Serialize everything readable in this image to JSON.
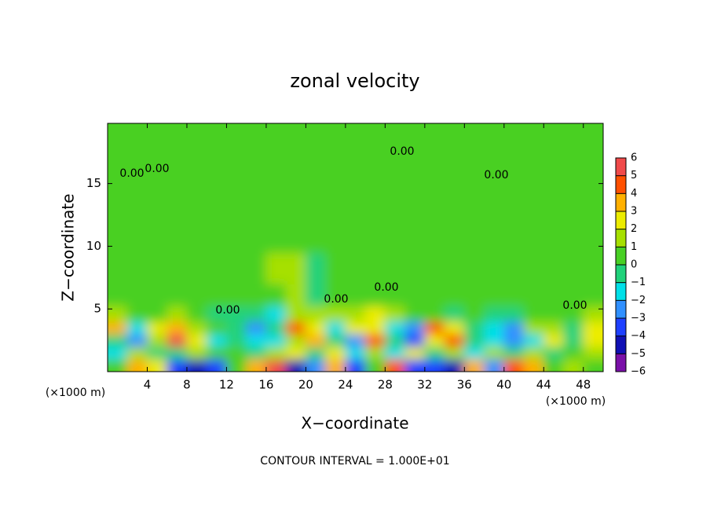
{
  "chart_data": {
    "type": "heatmap",
    "title": "zonal velocity",
    "xlabel": "X−coordinate",
    "ylabel": "Z−coordinate",
    "x_unit_label": "(×1000 m)",
    "y_unit_label": "(×1000 m)",
    "footnote": "CONTOUR INTERVAL = 1.000E+01",
    "xlim": [
      0,
      50
    ],
    "ylim": [
      0,
      19.8
    ],
    "xticks": [
      4,
      8,
      12,
      16,
      20,
      24,
      28,
      32,
      36,
      40,
      44,
      48
    ],
    "yticks": [
      5,
      10,
      15
    ],
    "x": [
      1,
      3,
      5,
      7,
      9,
      11,
      13,
      15,
      17,
      19,
      21,
      23,
      25,
      27,
      29,
      31,
      33,
      35,
      37,
      39,
      41,
      43,
      45,
      47,
      49
    ],
    "y": [
      0.5,
      1.5,
      2.5,
      3.5,
      4.5,
      6,
      8,
      11,
      14,
      17.5
    ],
    "values": [
      [
        0,
        3,
        2,
        -4,
        -5,
        -4,
        0,
        3,
        5,
        -5,
        -3,
        3,
        -4,
        0,
        4,
        -4,
        -4,
        -5,
        3,
        -3,
        4,
        3,
        0,
        1,
        0
      ],
      [
        -2,
        1,
        -1,
        -1,
        1,
        0,
        0,
        -1,
        1,
        2,
        -1,
        2,
        -2,
        1,
        -2,
        2,
        -1,
        1,
        -2,
        1,
        -1,
        1,
        -1,
        0,
        1
      ],
      [
        -1,
        -3,
        1,
        5,
        2,
        -2,
        -1,
        -2,
        -2,
        1,
        3,
        -1,
        -3,
        4,
        -1,
        -4,
        2,
        4,
        -1,
        -2,
        -3,
        -2,
        2,
        -1,
        2
      ],
      [
        3,
        -2,
        2,
        3,
        1,
        0,
        -1,
        -3,
        -1,
        4,
        2,
        -2,
        2,
        2,
        -2,
        -3,
        4,
        2,
        -1,
        -2,
        -3,
        1,
        1,
        -1,
        2
      ],
      [
        1,
        0,
        0,
        1,
        0,
        -1,
        -1,
        -1,
        -2,
        1,
        1,
        1,
        1,
        2,
        1,
        0,
        0,
        -1,
        0,
        -1,
        -1,
        0,
        0,
        0,
        1
      ],
      [
        0,
        0,
        0,
        0,
        0,
        0,
        0,
        0,
        0,
        1,
        -1,
        0,
        0,
        0,
        0,
        0,
        0,
        0,
        0,
        0,
        0,
        0,
        0,
        0,
        0
      ],
      [
        0,
        0,
        0,
        0,
        0,
        0,
        0,
        0,
        1,
        1,
        -1,
        0,
        0,
        0,
        0,
        0,
        0,
        0,
        0,
        0,
        0,
        0,
        0,
        0,
        0
      ],
      [
        0,
        0,
        0,
        0,
        0,
        0,
        0,
        0,
        0,
        0,
        0,
        0,
        0,
        0,
        0,
        0,
        0,
        0,
        0,
        0,
        0,
        0,
        0,
        0,
        0
      ],
      [
        0,
        0,
        0,
        0,
        0,
        0,
        0,
        0,
        0,
        0,
        0,
        0,
        0,
        0,
        0,
        0,
        0,
        0,
        0,
        0,
        0,
        0,
        0,
        0,
        0
      ],
      [
        0,
        0,
        0,
        0,
        0,
        0,
        0,
        0,
        0,
        0,
        0,
        0,
        0,
        0,
        0,
        0,
        0,
        0,
        0,
        0,
        0,
        0,
        0,
        0,
        0
      ]
    ],
    "colorbar": {
      "lim": [
        -6,
        6
      ],
      "ticks": [
        6,
        5,
        4,
        3,
        2,
        1,
        0,
        {
          "value": -1,
          "label": "−1"
        },
        {
          "value": -2,
          "label": "−2"
        },
        {
          "value": -3,
          "label": "−3"
        },
        {
          "value": -4,
          "label": "−4"
        },
        {
          "value": -5,
          "label": "−5"
        },
        {
          "value": -6,
          "label": "−6"
        }
      ],
      "colors": [
        "#7a10a8",
        "#1010b4",
        "#1e40ff",
        "#3090ff",
        "#00e0e8",
        "#20d27a",
        "#48d024",
        "#a6e000",
        "#ecec00",
        "#ffb000",
        "#ff5000",
        "#f04a4a"
      ]
    },
    "annotations": [
      "0.00",
      "0.00",
      "0.00",
      "0.00",
      "0.00",
      "0.00",
      "0.00",
      "0.00"
    ]
  }
}
